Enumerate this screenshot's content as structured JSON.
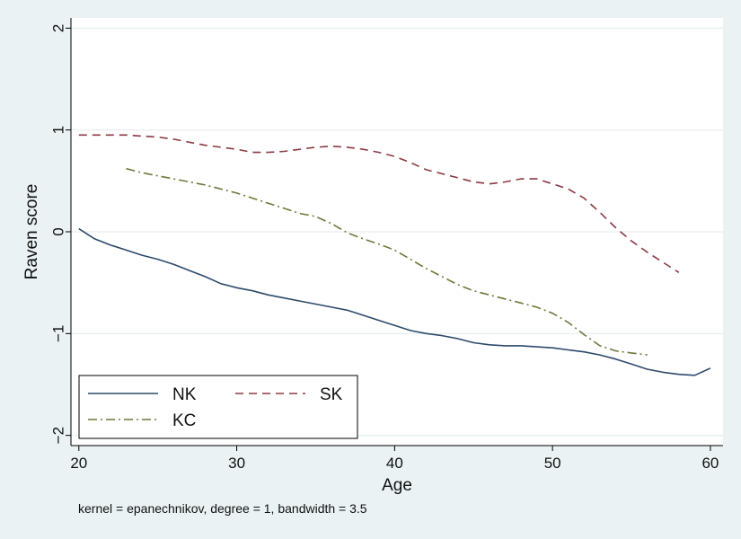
{
  "chart_data": {
    "type": "line",
    "title": "",
    "xlabel": "Age",
    "ylabel": "Raven score",
    "xlim": [
      19.5,
      60.8
    ],
    "ylim": [
      -2.1,
      2.1
    ],
    "xticks": [
      20,
      30,
      40,
      50,
      60
    ],
    "yticks": [
      -2,
      -1,
      0,
      1,
      2
    ],
    "ytick_labels": [
      "−2",
      "−1",
      "0",
      "1",
      "2"
    ],
    "grid": true,
    "legend_position": "bottom-left",
    "note": "kernel = epanechnikov, degree = 1, bandwidth = 3.5",
    "series": [
      {
        "name": "NK",
        "color": "#2c4a6b",
        "dash": "solid",
        "x": [
          20,
          21,
          22,
          23,
          24,
          25,
          26,
          27,
          28,
          29,
          30,
          31,
          32,
          33,
          34,
          35,
          36,
          37,
          38,
          39,
          40,
          41,
          42,
          43,
          44,
          45,
          46,
          47,
          48,
          49,
          50,
          51,
          52,
          53,
          54,
          55,
          56,
          57,
          58,
          59,
          60
        ],
        "values": [
          0.03,
          -0.07,
          -0.13,
          -0.18,
          -0.23,
          -0.27,
          -0.32,
          -0.38,
          -0.44,
          -0.51,
          -0.55,
          -0.58,
          -0.62,
          -0.65,
          -0.68,
          -0.71,
          -0.74,
          -0.77,
          -0.82,
          -0.87,
          -0.92,
          -0.97,
          -1.0,
          -1.02,
          -1.05,
          -1.09,
          -1.11,
          -1.12,
          -1.12,
          -1.13,
          -1.14,
          -1.16,
          -1.18,
          -1.21,
          -1.25,
          -1.3,
          -1.35,
          -1.38,
          -1.4,
          -1.41,
          -1.34
        ]
      },
      {
        "name": "SK",
        "color": "#8a3a42",
        "dash": "dashed",
        "x": [
          20,
          21,
          22,
          23,
          24,
          25,
          26,
          27,
          28,
          29,
          30,
          31,
          32,
          33,
          34,
          35,
          36,
          37,
          38,
          39,
          40,
          41,
          42,
          43,
          44,
          45,
          46,
          47,
          48,
          49,
          50,
          51,
          52,
          53,
          54,
          55,
          56,
          57,
          58
        ],
        "values": [
          0.95,
          0.95,
          0.95,
          0.95,
          0.94,
          0.93,
          0.91,
          0.88,
          0.85,
          0.83,
          0.81,
          0.78,
          0.78,
          0.79,
          0.81,
          0.83,
          0.84,
          0.83,
          0.81,
          0.78,
          0.74,
          0.68,
          0.61,
          0.57,
          0.53,
          0.49,
          0.47,
          0.49,
          0.52,
          0.52,
          0.47,
          0.42,
          0.33,
          0.19,
          0.04,
          -0.09,
          -0.2,
          -0.3,
          -0.4
        ]
      },
      {
        "name": "KC",
        "color": "#6a7a3a",
        "dash": "dashdot",
        "x": [
          23,
          24,
          25,
          26,
          27,
          28,
          29,
          30,
          31,
          32,
          33,
          34,
          35,
          36,
          37,
          38,
          39,
          40,
          41,
          42,
          43,
          44,
          45,
          46,
          47,
          48,
          49,
          50,
          51,
          52,
          53,
          54,
          55,
          56
        ],
        "values": [
          0.62,
          0.58,
          0.55,
          0.52,
          0.49,
          0.46,
          0.42,
          0.38,
          0.33,
          0.28,
          0.23,
          0.18,
          0.15,
          0.08,
          -0.01,
          -0.07,
          -0.12,
          -0.18,
          -0.27,
          -0.36,
          -0.44,
          -0.52,
          -0.58,
          -0.62,
          -0.66,
          -0.7,
          -0.74,
          -0.8,
          -0.89,
          -1.01,
          -1.12,
          -1.17,
          -1.19,
          -1.21
        ]
      }
    ]
  }
}
